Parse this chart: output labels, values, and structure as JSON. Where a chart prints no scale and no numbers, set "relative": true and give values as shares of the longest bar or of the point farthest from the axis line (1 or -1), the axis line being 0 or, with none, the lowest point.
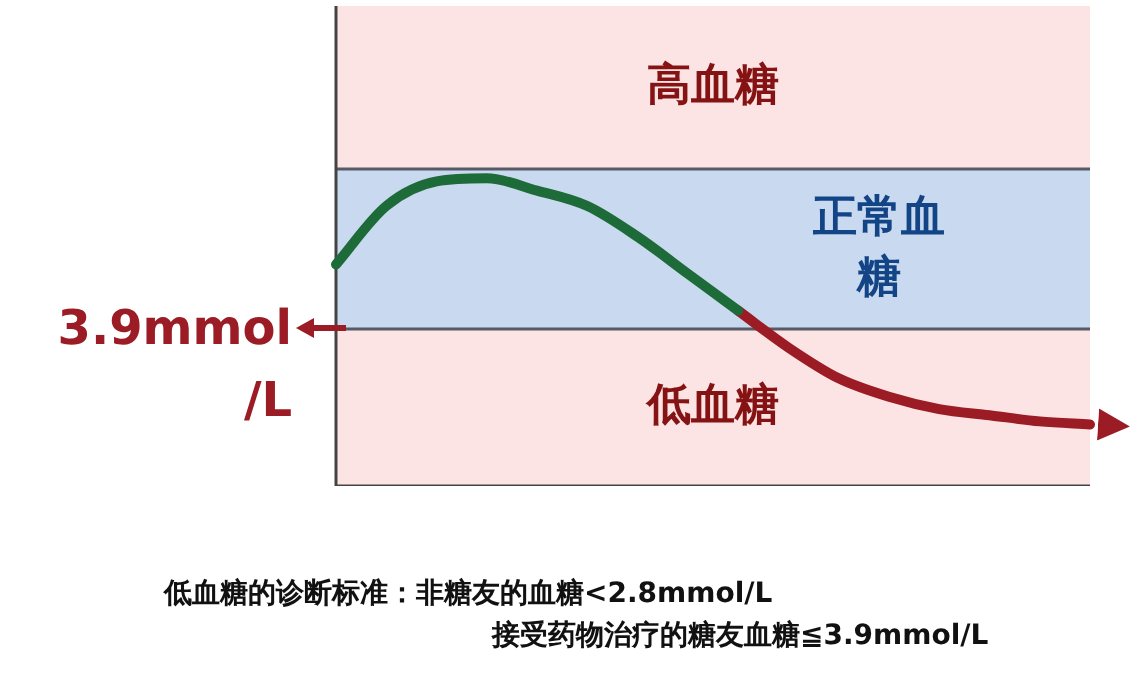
{
  "chart_data": {
    "type": "line",
    "relative": true,
    "categories": [
      null,
      null,
      null,
      null,
      null,
      null,
      null,
      null,
      null,
      null,
      null,
      null,
      null,
      null,
      null,
      null
    ],
    "series": [
      {
        "color": "#1e6b3a",
        "values": [
          0.72,
          0.91,
          0.99,
          1.0,
          0.96,
          0.91,
          0.81,
          0.69,
          0.57,
          null,
          null,
          null,
          null,
          null,
          null,
          null
        ]
      },
      {
        "color": "#9b1c24",
        "values": [
          null,
          null,
          null,
          null,
          null,
          null,
          null,
          null,
          0.57,
          0.45,
          0.35,
          0.29,
          0.25,
          0.23,
          0.21,
          0.2
        ]
      }
    ],
    "bands": [
      {
        "axis": "y",
        "from": 1.03,
        "to": 1.56,
        "label": "高血糖",
        "color": "#fce4e4"
      },
      {
        "axis": "y",
        "from": 0.51,
        "to": 1.03,
        "label": "正常血糖",
        "color": "#c9daf0"
      },
      {
        "axis": "y",
        "from": 0,
        "to": 0.51,
        "label": "低血糖",
        "color": "#fce4e4"
      }
    ],
    "ref_lines": [
      {
        "axis": "y",
        "value": 1.03,
        "color": "#555a66"
      },
      {
        "axis": "y",
        "value": 0.51,
        "color": "#555a66"
      }
    ],
    "annotations": [
      "3.9mmol/L",
      "低血糖的诊断标准：非糖友的血糖<2.8mmol/L",
      "接受药物治疗的糖友血糖≦3.9mmol/L"
    ],
    "legend": false,
    "grid": false,
    "marker": "none",
    "line_style": "solid"
  }
}
